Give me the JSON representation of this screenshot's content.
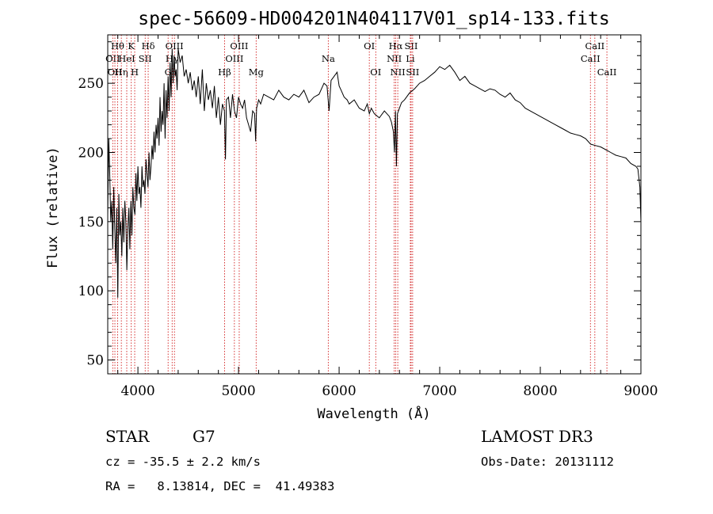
{
  "chart_data": {
    "type": "line",
    "title": "spec-56609-HD004201N404117V01_sp14-133.fits",
    "xlabel": "Wavelength (Å)",
    "ylabel": "Flux (relative)",
    "xlim": [
      3700,
      9000
    ],
    "ylim": [
      40,
      285
    ],
    "x_ticks": [
      4000,
      5000,
      6000,
      7000,
      8000,
      9000
    ],
    "y_ticks": [
      50,
      100,
      150,
      200,
      250
    ],
    "grid": false,
    "legend": "none",
    "series": [
      {
        "x": [
          3700,
          3710,
          3720,
          3730,
          3740,
          3750,
          3760,
          3770,
          3780,
          3790,
          3800,
          3810,
          3820,
          3830,
          3840,
          3850,
          3860,
          3870,
          3880,
          3890,
          3900,
          3910,
          3920,
          3930,
          3940,
          3950,
          3960,
          3970,
          3980,
          3990,
          4000,
          4010,
          4020,
          4030,
          4040,
          4050,
          4060,
          4070,
          4080,
          4090,
          4100,
          4110,
          4120,
          4130,
          4140,
          4150,
          4160,
          4170,
          4180,
          4190,
          4200,
          4210,
          4220,
          4230,
          4240,
          4250,
          4260,
          4270,
          4280,
          4290,
          4300,
          4310,
          4320,
          4330,
          4340,
          4350,
          4360,
          4370,
          4380,
          4390,
          4400,
          4420,
          4440,
          4460,
          4480,
          4500,
          4520,
          4540,
          4560,
          4580,
          4600,
          4620,
          4640,
          4660,
          4680,
          4700,
          4720,
          4740,
          4760,
          4780,
          4800,
          4820,
          4840,
          4860,
          4870,
          4880,
          4900,
          4920,
          4940,
          4960,
          4980,
          5000,
          5020,
          5040,
          5060,
          5080,
          5100,
          5120,
          5140,
          5160,
          5170,
          5180,
          5200,
          5220,
          5250,
          5300,
          5350,
          5400,
          5450,
          5500,
          5550,
          5600,
          5650,
          5700,
          5750,
          5800,
          5850,
          5880,
          5900,
          5920,
          5950,
          5980,
          6000,
          6020,
          6050,
          6080,
          6100,
          6150,
          6200,
          6250,
          6280,
          6300,
          6320,
          6350,
          6400,
          6450,
          6500,
          6520,
          6540,
          6550,
          6560,
          6570,
          6580,
          6600,
          6620,
          6650,
          6700,
          6750,
          6800,
          6850,
          6900,
          6950,
          7000,
          7050,
          7100,
          7150,
          7200,
          7250,
          7300,
          7350,
          7400,
          7450,
          7500,
          7550,
          7600,
          7650,
          7700,
          7750,
          7800,
          7850,
          7900,
          7950,
          8000,
          8050,
          8100,
          8150,
          8200,
          8250,
          8300,
          8350,
          8400,
          8450,
          8500,
          8550,
          8600,
          8650,
          8700,
          8750,
          8800,
          8850,
          8900,
          8950,
          8970,
          8990,
          9000
        ],
        "y": [
          155,
          210,
          185,
          150,
          165,
          130,
          175,
          145,
          120,
          160,
          95,
          170,
          140,
          150,
          125,
          160,
          135,
          165,
          150,
          115,
          145,
          160,
          130,
          165,
          140,
          175,
          160,
          155,
          185,
          165,
          190,
          170,
          175,
          160,
          190,
          175,
          180,
          170,
          195,
          185,
          175,
          200,
          180,
          190,
          205,
          195,
          215,
          200,
          220,
          210,
          225,
          205,
          240,
          215,
          230,
          220,
          250,
          210,
          245,
          225,
          255,
          230,
          265,
          240,
          275,
          250,
          270,
          255,
          260,
          245,
          275,
          265,
          270,
          255,
          260,
          250,
          258,
          245,
          252,
          240,
          255,
          235,
          260,
          230,
          250,
          238,
          245,
          232,
          248,
          225,
          240,
          220,
          235,
          230,
          195,
          238,
          240,
          225,
          242,
          230,
          225,
          240,
          235,
          232,
          238,
          225,
          220,
          215,
          230,
          228,
          208,
          232,
          238,
          235,
          242,
          240,
          238,
          245,
          240,
          238,
          242,
          240,
          245,
          236,
          240,
          242,
          250,
          248,
          230,
          252,
          255,
          258,
          248,
          245,
          240,
          238,
          235,
          238,
          232,
          230,
          235,
          228,
          232,
          228,
          225,
          230,
          226,
          222,
          215,
          200,
          230,
          190,
          228,
          232,
          236,
          238,
          243,
          246,
          250,
          252,
          255,
          258,
          262,
          260,
          263,
          258,
          252,
          255,
          250,
          248,
          246,
          244,
          246,
          245,
          242,
          240,
          243,
          238,
          236,
          232,
          230,
          228,
          226,
          224,
          222,
          220,
          218,
          216,
          214,
          213,
          212,
          210,
          206,
          205,
          204,
          202,
          200,
          198,
          197,
          196,
          192,
          190,
          188,
          175,
          150
        ]
      }
    ],
    "line_markers": [
      {
        "x": 3750,
        "label": "OII",
        "row": 2
      },
      {
        "x": 3771,
        "label": "OII",
        "row": 3
      },
      {
        "x": 3798,
        "label": "Hθ",
        "row": 1
      },
      {
        "x": 3835,
        "label": "Hη",
        "row": 3
      },
      {
        "x": 3889,
        "label": "HeI",
        "row": 2
      },
      {
        "x": 3934,
        "label": "K",
        "row": 1
      },
      {
        "x": 3968,
        "label": "H",
        "row": 3
      },
      {
        "x": 4072,
        "label": "SII",
        "row": 2
      },
      {
        "x": 4102,
        "label": "Hδ",
        "row": 1
      },
      {
        "x": 4300,
        "label": "G",
        "row": 3
      },
      {
        "x": 4340,
        "label": "Hγ",
        "row": 2
      },
      {
        "x": 4363,
        "label": "OIII",
        "row": 1
      },
      {
        "x": 4861,
        "label": "Hβ",
        "row": 3
      },
      {
        "x": 4959,
        "label": "OIII",
        "row": 2
      },
      {
        "x": 5007,
        "label": "OIII",
        "row": 1
      },
      {
        "x": 5175,
        "label": "Mg",
        "row": 3
      },
      {
        "x": 5892,
        "label": "Na",
        "row": 2
      },
      {
        "x": 6300,
        "label": "OI",
        "row": 1
      },
      {
        "x": 6364,
        "label": "OI",
        "row": 3
      },
      {
        "x": 6548,
        "label": "NII",
        "row": 2
      },
      {
        "x": 6563,
        "label": "Hα",
        "row": 1
      },
      {
        "x": 6583,
        "label": "NII",
        "row": 3
      },
      {
        "x": 6708,
        "label": "Li",
        "row": 2
      },
      {
        "x": 6716,
        "label": "SII",
        "row": 1
      },
      {
        "x": 6731,
        "label": "SII",
        "row": 3
      },
      {
        "x": 8498,
        "label": "CaII",
        "row": 2
      },
      {
        "x": 8542,
        "label": "CaII",
        "row": 1
      },
      {
        "x": 8662,
        "label": "CaII",
        "row": 3
      }
    ]
  },
  "info": {
    "class": "STAR",
    "subclass": "G7",
    "survey": "LAMOST DR3",
    "redshift_line": "cz = -35.5 ± 2.2 km/s",
    "obs_date": "Obs-Date: 20131112",
    "coords": "RA =   8.13814, DEC =  41.49383"
  }
}
